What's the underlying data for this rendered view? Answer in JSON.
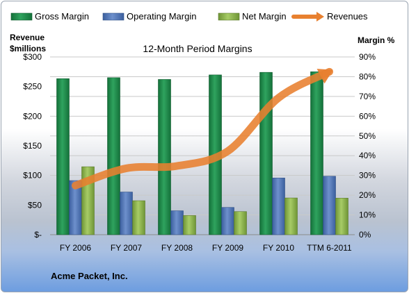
{
  "footer_text": "Acme Packet, Inc.",
  "chart_data": {
    "type": "bar",
    "title": "12-Month Period Margins",
    "categories": [
      "FY 2006",
      "FY 2007",
      "FY 2008",
      "FY 2009",
      "FY 2010",
      "TTM 6-2011"
    ],
    "left_axis": {
      "label_line1": "Revenue",
      "label_line2": "$millions",
      "ylim": [
        0,
        300
      ],
      "ticks": [
        0,
        50,
        100,
        150,
        200,
        250,
        300
      ],
      "tick_labels": [
        "$-",
        "$50",
        "$100",
        "$150",
        "$200",
        "$250",
        "$300"
      ]
    },
    "right_axis": {
      "label": "Margin %",
      "ylim": [
        0,
        90
      ],
      "ticks": [
        0,
        10,
        20,
        30,
        40,
        50,
        60,
        70,
        80,
        90
      ],
      "tick_labels": [
        "0%",
        "10%",
        "20%",
        "30%",
        "40%",
        "50%",
        "60%",
        "70%",
        "80%",
        "90%"
      ]
    },
    "series": [
      {
        "name": "Gross Margin",
        "kind": "bar",
        "axis": "right",
        "color": "#1f8a4c",
        "values": [
          79,
          79.5,
          78.6,
          80.9,
          82.2,
          82.5
        ]
      },
      {
        "name": "Operating Margin",
        "kind": "bar",
        "axis": "right",
        "color": "#4f74b6",
        "values": [
          27.4,
          21.6,
          12.1,
          13.8,
          28.7,
          29.6
        ]
      },
      {
        "name": "Net Margin",
        "kind": "bar",
        "axis": "right",
        "color": "#8fb64a",
        "values": [
          34.4,
          17.2,
          9.7,
          11.7,
          18.6,
          18.5
        ]
      },
      {
        "name": "Revenues",
        "kind": "line",
        "axis": "left",
        "color": "#e8802f",
        "values": [
          83,
          112,
          116,
          141,
          231,
          275
        ]
      }
    ],
    "grid": true,
    "legend_position": "top"
  }
}
